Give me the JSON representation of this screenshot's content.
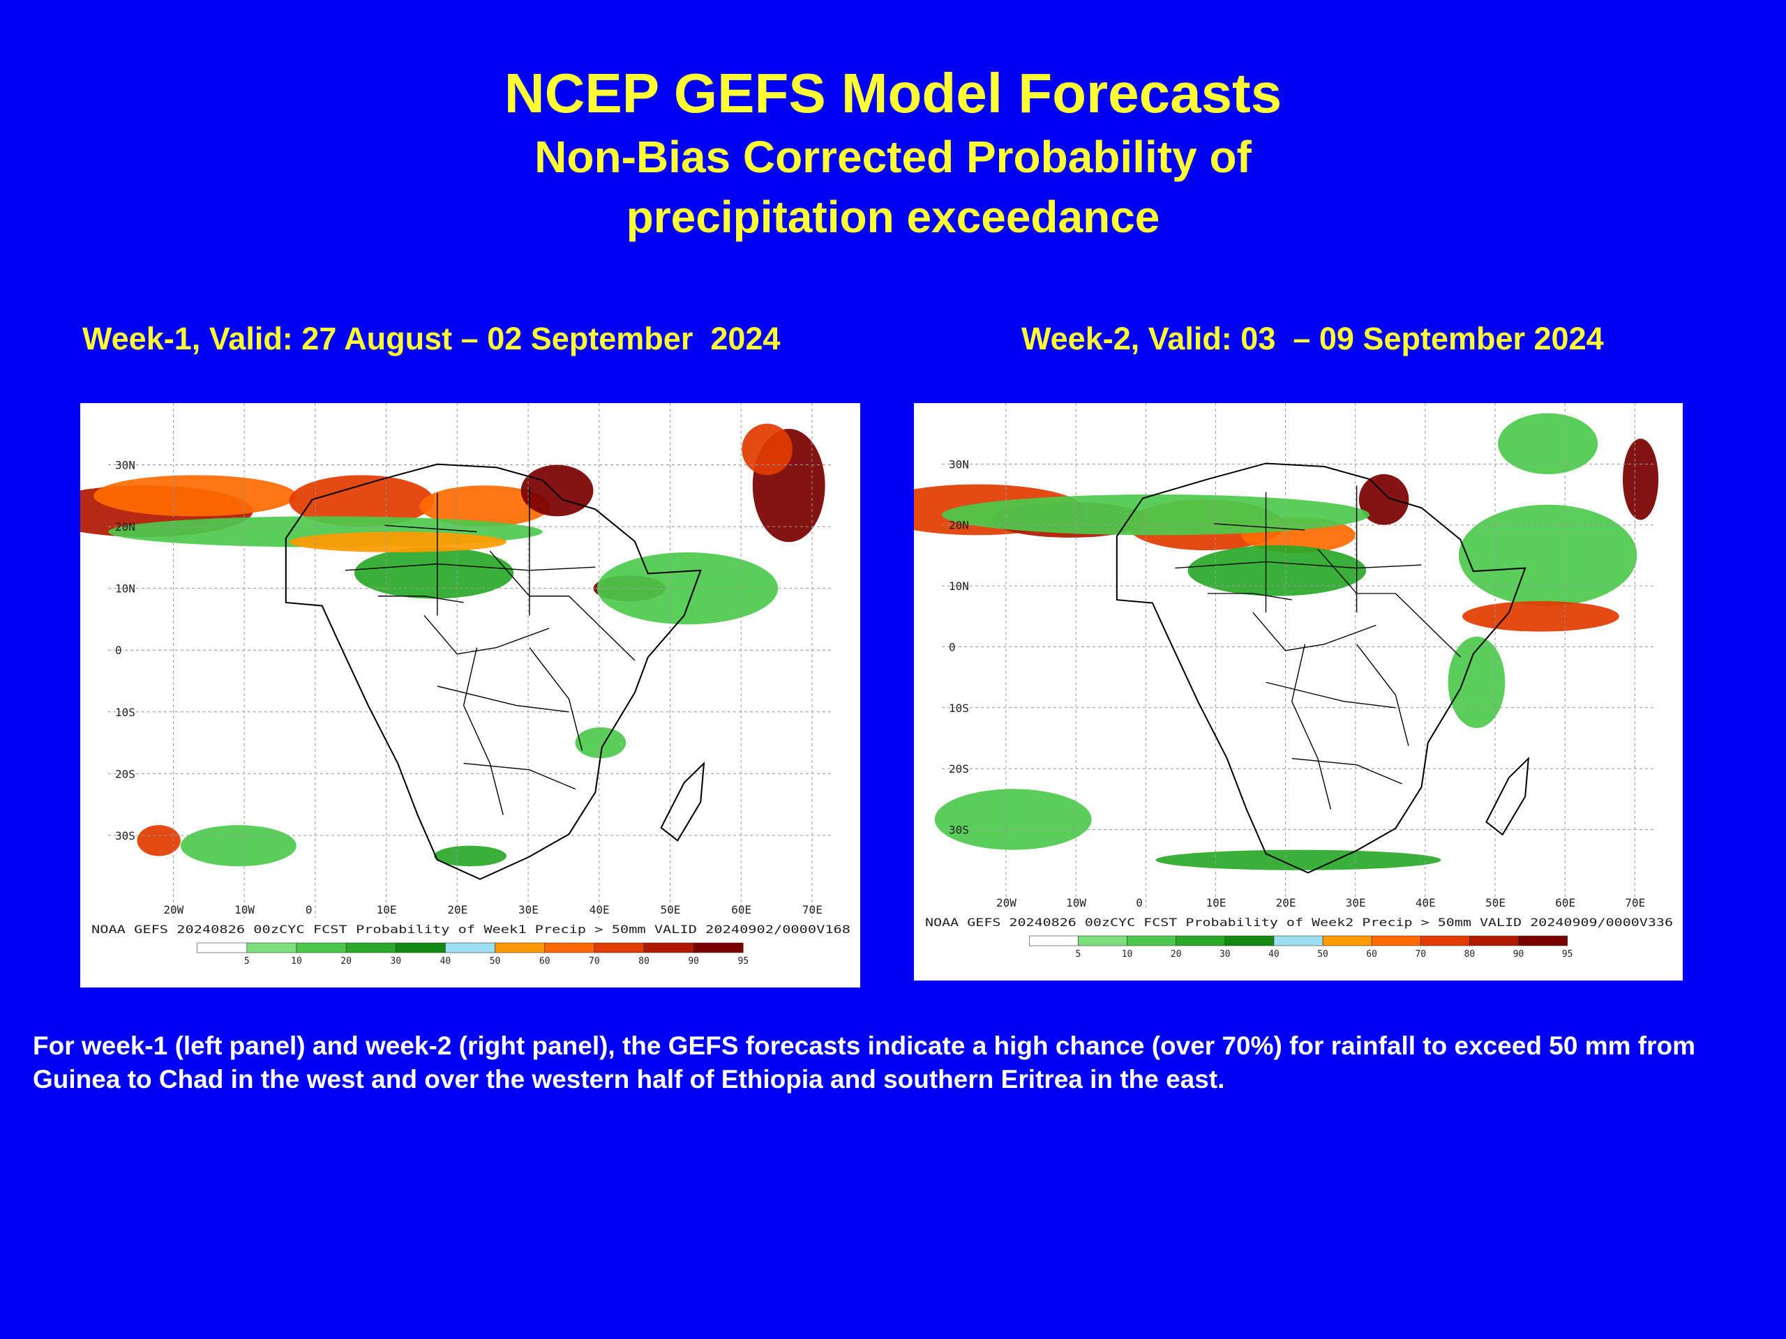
{
  "header": {
    "title": "NCEP GEFS Model Forecasts",
    "subtitle_line1": "Non-Bias Corrected Probability of",
    "subtitle_line2": "precipitation exceedance"
  },
  "panels": [
    {
      "heading": "Week-1, Valid: 27 August – 02 September  2024",
      "footer": "NOAA GEFS 20240826 00zCYC FCST Probability of Week1 Precip > 50mm  VALID 20240902/0000V168",
      "lat_labels": [
        "30N",
        "20N",
        "10N",
        "0",
        "10S",
        "20S",
        "30S"
      ],
      "lon_labels": [
        "20W",
        "10W",
        "0",
        "10E",
        "20E",
        "30E",
        "40E",
        "50E",
        "60E",
        "70E"
      ],
      "colorbar_labels": [
        "5",
        "10",
        "20",
        "30",
        "40",
        "50",
        "60",
        "70",
        "80",
        "90",
        "95"
      ]
    },
    {
      "heading": "Week-2, Valid: 03  – 09 September 2024",
      "footer": "NOAA GEFS 20240826 00zCYC FCST Probability of Week2 Precip > 50mm  VALID 20240909/0000V336",
      "lat_labels": [
        "30N",
        "20N",
        "10N",
        "0",
        "10S",
        "20S",
        "30S"
      ],
      "lon_labels": [
        "20W",
        "10W",
        "0",
        "10E",
        "20E",
        "30E",
        "40E",
        "50E",
        "60E",
        "70E"
      ],
      "colorbar_labels": [
        "5",
        "10",
        "20",
        "30",
        "40",
        "50",
        "60",
        "70",
        "80",
        "90",
        "95"
      ]
    }
  ],
  "colorbar_colors": [
    "#ffffff",
    "#7de07d",
    "#4cc94c",
    "#29a829",
    "#128a12",
    "#9cdff0",
    "#ff9a00",
    "#ff6a00",
    "#e23c00",
    "#b01800",
    "#7a0000"
  ],
  "caption": "For week-1 (left panel) and week-2 (right panel), the GEFS forecasts indicate a high chance (over 70%) for rainfall to exceed 50 mm from Guinea to Chad in the west and over the western half of Ethiopia and southern Eritrea in the east."
}
